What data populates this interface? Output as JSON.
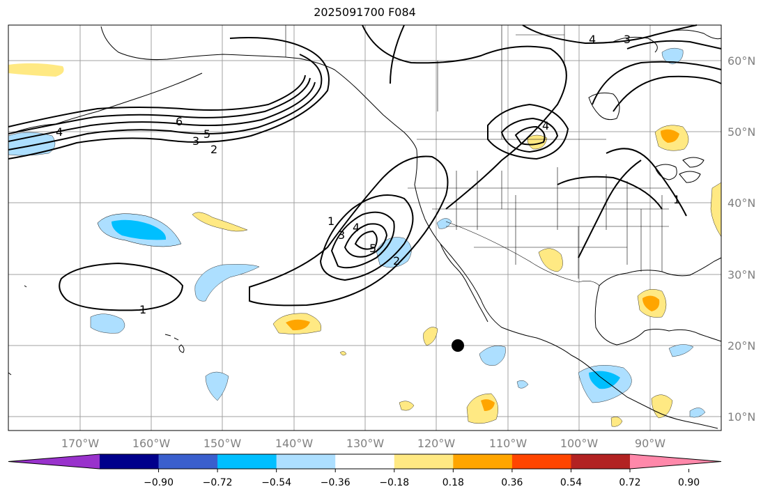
{
  "title": "2025091700 F084",
  "lat_labels": [
    "60°N",
    "50°N",
    "40°N",
    "30°N",
    "20°N",
    "10°N"
  ],
  "lon_labels": [
    "170°W",
    "160°W",
    "150°W",
    "140°W",
    "130°W",
    "120°W",
    "110°W",
    "100°W",
    "90°W"
  ],
  "colorbar": {
    "ticks": [
      "−0.90",
      "−0.72",
      "−0.54",
      "−0.36",
      "−0.18",
      "0.18",
      "0.36",
      "0.54",
      "0.72",
      "0.90"
    ],
    "colors": [
      "#9932CC",
      "#00008B",
      "#3A5FCD",
      "#00BFFF",
      "#ADDFFF",
      "#FFFFFF",
      "#FFE983",
      "#FFA500",
      "#FF4500",
      "#B22222",
      "#FF88AA"
    ]
  },
  "contour_labels": {
    "c1": "1",
    "c2": "2",
    "c3": "3",
    "c4": "4",
    "c5": "5",
    "c6": "6"
  }
}
